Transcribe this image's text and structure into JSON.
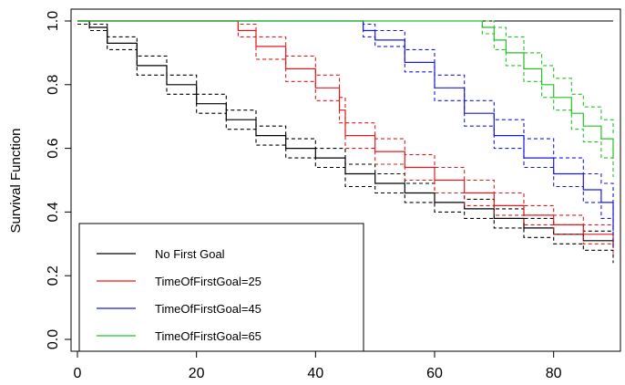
{
  "chart_data": {
    "type": "line",
    "step": true,
    "xlabel": "",
    "ylabel": "Survival Function",
    "xlim": [
      0,
      90
    ],
    "ylim": [
      0,
      1
    ],
    "x_ticks": [
      0,
      20,
      40,
      60,
      80
    ],
    "y_ticks": [
      0.0,
      0.2,
      0.4,
      0.6,
      0.8,
      1.0
    ],
    "x_tick_labels": [
      "0",
      "20",
      "40",
      "60",
      "80"
    ],
    "y_tick_labels": [
      "0.0",
      "0.2",
      "0.4",
      "0.6",
      "0.8",
      "1.0"
    ],
    "reference_line": {
      "y": 1.0,
      "color": "#000000"
    },
    "legend_position": "bottom-left",
    "series": [
      {
        "name": "No First Goal",
        "color": "#000000",
        "x": [
          0,
          2,
          5,
          10,
          15,
          20,
          25,
          30,
          35,
          40,
          45,
          50,
          55,
          60,
          65,
          70,
          75,
          80,
          85,
          90
        ],
        "y": [
          1.0,
          0.98,
          0.93,
          0.86,
          0.8,
          0.74,
          0.69,
          0.64,
          0.6,
          0.57,
          0.52,
          0.49,
          0.46,
          0.43,
          0.41,
          0.38,
          0.35,
          0.33,
          0.31,
          0.29
        ],
        "lower": [
          0.99,
          0.97,
          0.91,
          0.83,
          0.77,
          0.71,
          0.66,
          0.61,
          0.57,
          0.54,
          0.48,
          0.46,
          0.43,
          0.4,
          0.38,
          0.35,
          0.32,
          0.3,
          0.28,
          0.24
        ],
        "upper": [
          1.0,
          0.99,
          0.95,
          0.89,
          0.83,
          0.77,
          0.72,
          0.67,
          0.63,
          0.6,
          0.55,
          0.52,
          0.49,
          0.46,
          0.44,
          0.41,
          0.38,
          0.36,
          0.34,
          0.31
        ]
      },
      {
        "name": "TimeOfFirstGoal=25",
        "color": "#e41a1c",
        "x": [
          0,
          25,
          27,
          30,
          35,
          40,
          44,
          45,
          50,
          55,
          60,
          65,
          70,
          75,
          80,
          85,
          90
        ],
        "y": [
          1.0,
          1.0,
          0.97,
          0.92,
          0.85,
          0.79,
          0.72,
          0.64,
          0.59,
          0.54,
          0.5,
          0.46,
          0.42,
          0.39,
          0.36,
          0.33,
          0.3
        ],
        "lower": [
          1.0,
          1.0,
          0.95,
          0.88,
          0.81,
          0.75,
          0.68,
          0.6,
          0.55,
          0.5,
          0.46,
          0.42,
          0.39,
          0.36,
          0.33,
          0.3,
          0.27
        ],
        "upper": [
          1.0,
          1.0,
          0.99,
          0.95,
          0.89,
          0.83,
          0.76,
          0.68,
          0.63,
          0.58,
          0.54,
          0.5,
          0.46,
          0.42,
          0.39,
          0.36,
          0.33
        ]
      },
      {
        "name": "TimeOfFirstGoal=45",
        "color": "#1a1adf",
        "x": [
          0,
          45,
          48,
          50,
          55,
          60,
          65,
          70,
          75,
          80,
          85,
          88,
          90
        ],
        "y": [
          1.0,
          1.0,
          0.97,
          0.94,
          0.87,
          0.79,
          0.71,
          0.64,
          0.57,
          0.52,
          0.47,
          0.43,
          0.34
        ],
        "lower": [
          1.0,
          1.0,
          0.95,
          0.92,
          0.84,
          0.75,
          0.67,
          0.6,
          0.54,
          0.48,
          0.43,
          0.38,
          0.29
        ],
        "upper": [
          1.0,
          1.0,
          0.99,
          0.97,
          0.91,
          0.83,
          0.75,
          0.69,
          0.63,
          0.57,
          0.52,
          0.49,
          0.39
        ]
      },
      {
        "name": "TimeOfFirstGoal=65",
        "color": "#22c322",
        "x": [
          0,
          65,
          68,
          70,
          72,
          75,
          78,
          80,
          83,
          85,
          88,
          90
        ],
        "y": [
          1.0,
          1.0,
          0.98,
          0.94,
          0.9,
          0.85,
          0.8,
          0.76,
          0.71,
          0.67,
          0.63,
          0.57
        ],
        "lower": [
          1.0,
          1.0,
          0.96,
          0.91,
          0.86,
          0.81,
          0.76,
          0.72,
          0.66,
          0.62,
          0.57,
          0.51
        ],
        "upper": [
          1.0,
          1.0,
          1.0,
          0.98,
          0.95,
          0.9,
          0.86,
          0.82,
          0.77,
          0.73,
          0.69,
          0.64
        ]
      }
    ]
  }
}
